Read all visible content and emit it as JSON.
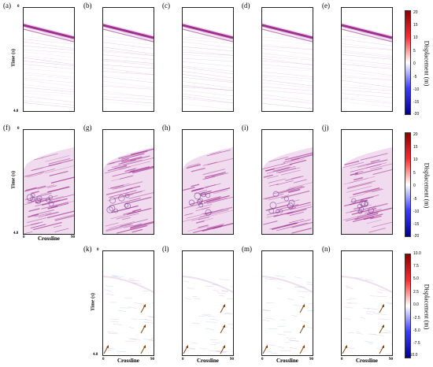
{
  "panel_labels": [
    "(a)",
    "(b)",
    "(c)",
    "(d)",
    "(e)",
    "(f)",
    "(g)",
    "(h)",
    "(i)",
    "(j)",
    "(k)",
    "(l)",
    "(m)",
    "(n)"
  ],
  "axis": {
    "y_title": "Time (s)",
    "y_top": "0",
    "y_bottom": "4.8",
    "x_title": "Crossline",
    "x_left": "0",
    "x_right": "90"
  },
  "colorbars": [
    {
      "title": "Displacement (m)",
      "ticks": [
        "20",
        "15",
        "10",
        "5",
        "0",
        "-5",
        "-10",
        "-15",
        "-20"
      ]
    },
    {
      "title": "Displacement (m)",
      "ticks": [
        "20",
        "15",
        "10",
        "5",
        "0",
        "-5",
        "-10",
        "-15",
        "-20"
      ]
    },
    {
      "title": "Displacement (m)",
      "ticks": [
        "10.0",
        "7.5",
        "5.0",
        "2.5",
        "0.0",
        "-2.5",
        "-5.0",
        "-7.5",
        "-10.0"
      ]
    }
  ],
  "colors": {
    "colormap_top": "#8b0000",
    "colormap_mid": "#ffffff",
    "colormap_bottom": "#00008b",
    "seismic": "#a0308f",
    "arrow": "#7a3a00"
  }
}
